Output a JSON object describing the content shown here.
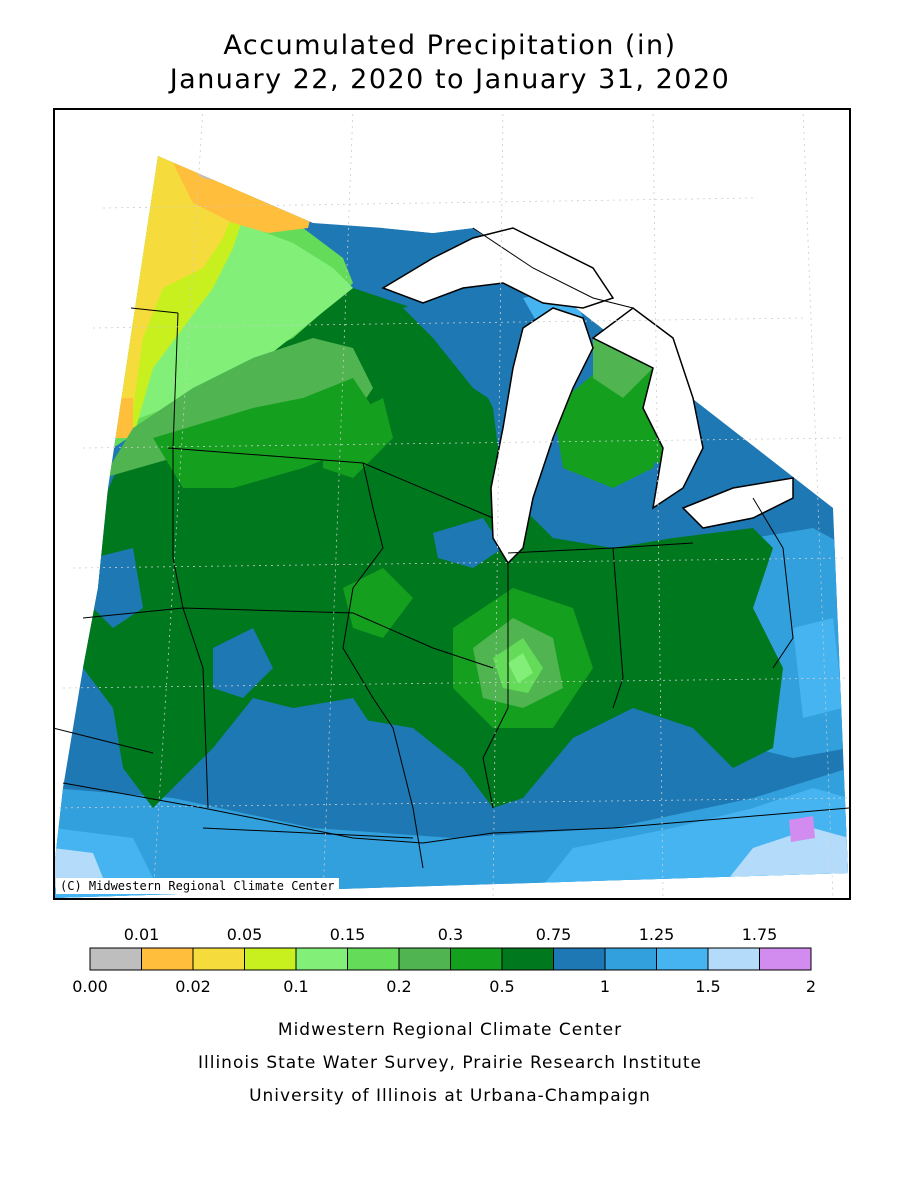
{
  "title": "Accumulated Precipitation (in)",
  "subtitle": "January 22, 2020 to January 31, 2020",
  "copyright": "(C) Midwestern Regional Climate Center",
  "legend": {
    "top_labels": [
      "0.01",
      "0.05",
      "0.15",
      "0.3",
      "0.75",
      "1.25",
      "1.75"
    ],
    "bottom_labels": [
      "0.00",
      "0.02",
      "0.1",
      "0.2",
      "0.5",
      "1",
      "1.5",
      "2"
    ],
    "colors": [
      "#bebebe",
      "#ffbe3c",
      "#f5dc3c",
      "#c8f01e",
      "#82f078",
      "#64dc5a",
      "#50b450",
      "#14a01e",
      "#00781e",
      "#1e78b4",
      "#32a0dc",
      "#46b4f0",
      "#b4dcfa",
      "#d28cf0"
    ]
  },
  "credits": [
    "Midwestern Regional Climate Center",
    "Illinois State Water Survey, Prairie Research Institute",
    "University of Illinois at Urbana-Champaign"
  ]
}
